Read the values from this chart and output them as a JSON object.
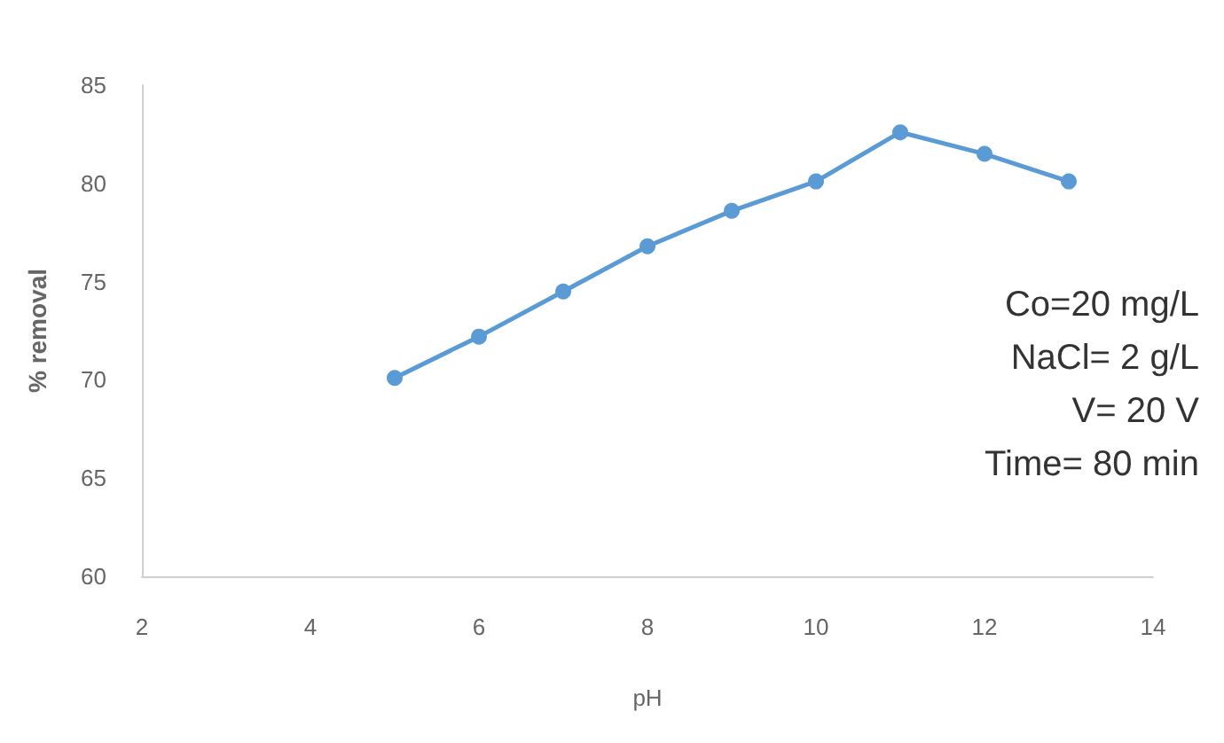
{
  "chart_data": {
    "type": "line",
    "xlabel": "pH",
    "ylabel": "% removal",
    "x": [
      5,
      6,
      7,
      8,
      9,
      10,
      11,
      12,
      13
    ],
    "series": [
      {
        "color": "#5b9bd5",
        "values": [
          70.1,
          72.2,
          74.5,
          76.8,
          78.6,
          80.1,
          82.6,
          81.5,
          80.1
        ]
      }
    ],
    "xlim": [
      2,
      14
    ],
    "xticks": [
      2,
      4,
      6,
      8,
      10,
      12,
      14
    ],
    "ylim": [
      60,
      85
    ],
    "yticks": [
      60,
      65,
      70,
      75,
      80,
      85
    ],
    "grid": false,
    "marker": "circle",
    "line_style": "solid",
    "annotations": [
      "Co=20 mg/L",
      "NaCl= 2 g/L",
      "V= 20 V",
      "Time= 80 min"
    ]
  }
}
